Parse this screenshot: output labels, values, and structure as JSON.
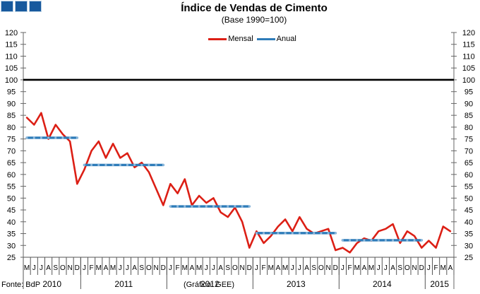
{
  "logo": {
    "square_count": 3,
    "color": "#17599d"
  },
  "chart_data": {
    "type": "line",
    "title": "Índice de Vendas de Cimento",
    "subtitle": "(Base 1990=100)",
    "source_note": "Fonte: BdP",
    "credit_note": "(Gráfico: GEE)",
    "ylim": [
      25,
      120
    ],
    "ytick_step": 5,
    "reference_line_value": 100,
    "grid": "off",
    "legend_position": "top-center",
    "colors": {
      "mensal": "#dc1f15",
      "anual": "#2e7cb9",
      "reference": "#000000",
      "axis": "#666666"
    },
    "x_month_labels": [
      "M",
      "J",
      "J",
      "A",
      "S",
      "O",
      "N",
      "D",
      "J",
      "F",
      "M",
      "A",
      "M",
      "J",
      "J",
      "A",
      "S",
      "O",
      "N",
      "D",
      "J",
      "F",
      "M",
      "A",
      "M",
      "J",
      "J",
      "A",
      "S",
      "O",
      "N",
      "D",
      "J",
      "F",
      "M",
      "A",
      "M",
      "J",
      "J",
      "A",
      "S",
      "O",
      "N",
      "D",
      "J",
      "F",
      "M",
      "A",
      "M",
      "J",
      "J",
      "A",
      "S",
      "O",
      "N",
      "D",
      "J",
      "F",
      "M",
      "A"
    ],
    "years": [
      {
        "label": "2010",
        "months": 8
      },
      {
        "label": "2011",
        "months": 12
      },
      {
        "label": "2012",
        "months": 12
      },
      {
        "label": "2013",
        "months": 12
      },
      {
        "label": "2014",
        "months": 12
      },
      {
        "label": "2015",
        "months": 4
      }
    ],
    "series": [
      {
        "name": "Mensal",
        "type": "line",
        "color": "#dc1f15",
        "values": [
          84,
          81,
          86,
          75,
          81,
          77,
          74,
          56,
          62,
          70,
          74,
          67,
          73,
          67,
          69,
          63,
          65,
          61,
          54,
          47,
          56,
          52,
          58,
          47,
          51,
          48,
          50,
          44,
          42,
          46,
          40,
          29,
          36,
          31,
          34,
          38,
          41,
          36,
          42,
          37,
          35,
          36,
          37,
          28,
          29,
          27,
          31,
          33,
          32,
          36,
          37,
          39,
          31,
          36,
          34,
          29,
          32,
          29,
          38,
          36
        ]
      },
      {
        "name": "Anual",
        "type": "annual-average-segments",
        "color": "#2e7cb9",
        "segments": [
          {
            "year": "2010",
            "month_start_index": 0,
            "month_end_index": 7,
            "value": 75.5
          },
          {
            "year": "2011",
            "month_start_index": 8,
            "month_end_index": 19,
            "value": 64
          },
          {
            "year": "2012",
            "month_start_index": 20,
            "month_end_index": 31,
            "value": 46.5
          },
          {
            "year": "2013",
            "month_start_index": 32,
            "month_end_index": 43,
            "value": 35.2
          },
          {
            "year": "2014",
            "month_start_index": 44,
            "month_end_index": 55,
            "value": 32.2
          }
        ]
      }
    ]
  }
}
